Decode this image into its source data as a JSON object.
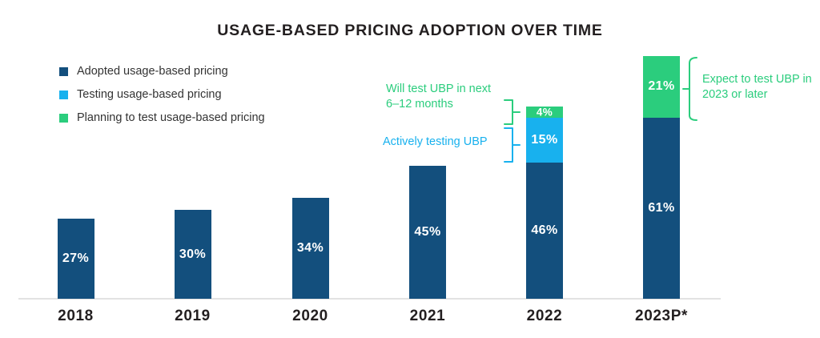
{
  "title": "USAGE-BASED PRICING ADOPTION OVER TIME",
  "colors": {
    "adopted": "#134F7D",
    "testing": "#18B1EE",
    "planning": "#2BCD7D",
    "title_text": "#231F20",
    "axis_line": "#E2E2E2",
    "bar_label_text": "#FFFFFF"
  },
  "legend": {
    "items": [
      {
        "label": "Adopted usage-based pricing",
        "color": "#134F7D"
      },
      {
        "label": "Testing usage-based pricing",
        "color": "#18B1EE"
      },
      {
        "label": "Planning to test usage-based pricing",
        "color": "#2BCD7D"
      }
    ]
  },
  "annotations": {
    "will_test": {
      "line1": "Will test UBP in next",
      "line2": "6–12 months",
      "color": "#2BCD7D"
    },
    "actively_testing": {
      "line1": "Actively testing UBP",
      "color": "#18B1EE"
    },
    "expect_test": {
      "line1": "Expect to test UBP in",
      "line2": "2023 or later",
      "color": "#2BCD7D"
    }
  },
  "chart_data": {
    "type": "bar",
    "stacked": true,
    "title": "USAGE-BASED PRICING ADOPTION OVER TIME",
    "categories": [
      "2018",
      "2019",
      "2020",
      "2021",
      "2022",
      "2023P*"
    ],
    "series": [
      {
        "name": "Adopted usage-based pricing",
        "color_key": "adopted",
        "values": [
          27,
          30,
          34,
          45,
          46,
          61
        ]
      },
      {
        "name": "Testing usage-based pricing",
        "color_key": "testing",
        "values": [
          0,
          0,
          0,
          0,
          15,
          0
        ]
      },
      {
        "name": "Planning to test usage-based pricing",
        "color_key": "planning",
        "values": [
          0,
          0,
          0,
          0,
          4,
          21
        ]
      }
    ],
    "value_suffix": "%",
    "xlabel": "",
    "ylabel": "",
    "ylim": [
      0,
      100
    ],
    "grid": false,
    "legend_position": "top-left"
  }
}
